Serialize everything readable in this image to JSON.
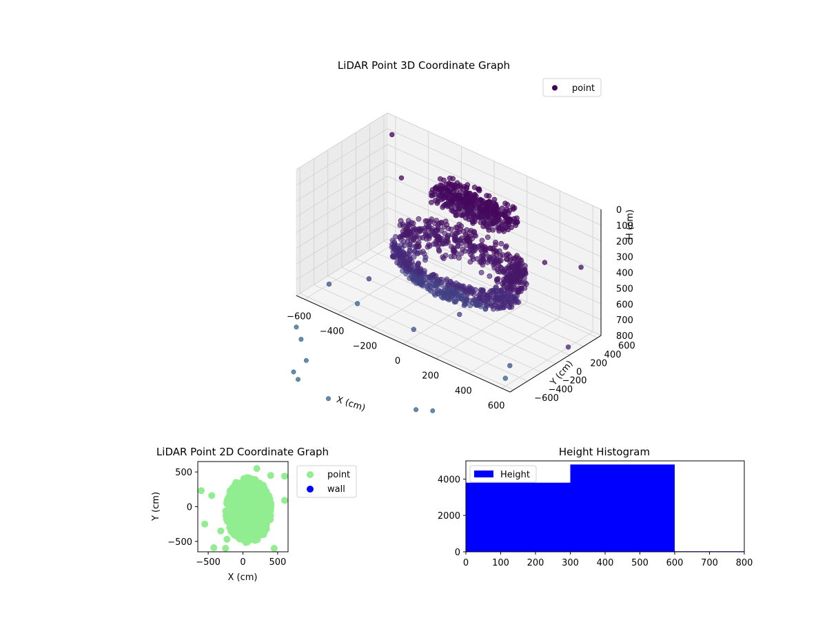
{
  "chart_data": [
    {
      "type": "scatter",
      "projection": "3d",
      "title": "LiDAR Point 3D Coordinate Graph",
      "xlabel": "X (cm)",
      "ylabel": "Y (cm)",
      "zlabel": "H (cm)",
      "xlim": [
        -650,
        650
      ],
      "ylim": [
        -650,
        650
      ],
      "zlim": [
        800,
        0
      ],
      "z_inverted": true,
      "xticks": [
        -600,
        -400,
        -200,
        0,
        200,
        400,
        600
      ],
      "yticks": [
        -600,
        -400,
        -200,
        0,
        200,
        400,
        600
      ],
      "zticks": [
        0,
        100,
        200,
        300,
        400,
        500,
        600,
        700,
        800
      ],
      "legend": {
        "entries": [
          "point"
        ],
        "placement": "upper-right"
      },
      "colormap": "viridis",
      "series": [
        {
          "name": "point",
          "clusters": [
            {
              "description": "top slab",
              "x": [
                -200,
                250
              ],
              "y": [
                150,
                450
              ],
              "h": [
                130,
                230
              ]
            },
            {
              "description": "main shell",
              "x": [
                -350,
                400
              ],
              "y": [
                -300,
                450
              ],
              "h": [
                350,
                750
              ]
            }
          ],
          "outliers": [
            {
              "x": -600,
              "y": 600,
              "h": 100
            },
            {
              "x": -500,
              "y": 500,
              "h": 300
            },
            {
              "x": 550,
              "y": 600,
              "h": 400
            },
            {
              "x": 600,
              "y": 300,
              "h": 800
            },
            {
              "x": 500,
              "y": -300,
              "h": 800
            },
            {
              "x": -400,
              "y": -200,
              "h": 700
            },
            {
              "x": -600,
              "y": -300,
              "h": 800
            },
            {
              "x": 0,
              "y": -500,
              "h": 750
            },
            {
              "x": -300,
              "y": -600,
              "h": 700
            },
            {
              "x": 300,
              "y": -550,
              "h": 500
            },
            {
              "x": 600,
              "y": -600,
              "h": 750
            },
            {
              "x": 400,
              "y": 0,
              "h": 500
            }
          ]
        }
      ]
    },
    {
      "type": "scatter",
      "title": "LiDAR Point 2D Coordinate Graph",
      "xlabel": "X (cm)",
      "ylabel": "Y (cm)",
      "xlim": [
        -650,
        650
      ],
      "ylim": [
        -650,
        650
      ],
      "xticks": [
        -500,
        0,
        500
      ],
      "yticks": [
        -500,
        0,
        500
      ],
      "legend": {
        "entries": [
          "point",
          "wall"
        ],
        "placement": "outside-right"
      },
      "series": [
        {
          "name": "point",
          "color": "#90ee90",
          "cluster": {
            "x": [
              -350,
              450
            ],
            "y": [
              -550,
              500
            ]
          },
          "outliers": [
            {
              "x": -600,
              "y": 230
            },
            {
              "x": -450,
              "y": 160
            },
            {
              "x": -550,
              "y": -250
            },
            {
              "x": -320,
              "y": -350
            },
            {
              "x": -230,
              "y": -470
            },
            {
              "x": -420,
              "y": -590
            },
            {
              "x": -250,
              "y": -600
            },
            {
              "x": 200,
              "y": 550
            },
            {
              "x": 400,
              "y": 450
            },
            {
              "x": 600,
              "y": 440
            },
            {
              "x": 600,
              "y": 90
            },
            {
              "x": 450,
              "y": -600
            },
            {
              "x": -100,
              "y": 350
            }
          ]
        },
        {
          "name": "wall",
          "color": "#0000ff",
          "points": []
        }
      ]
    },
    {
      "type": "bar",
      "subtype": "histogram",
      "title": "Height Histogram",
      "xlim": [
        0,
        800
      ],
      "ylim": [
        0,
        5000
      ],
      "xticks": [
        0,
        100,
        200,
        300,
        400,
        500,
        600,
        700,
        800
      ],
      "yticks": [
        0,
        2000,
        4000
      ],
      "legend": {
        "entries": [
          "Height"
        ],
        "placement": "upper-left"
      },
      "color": "#0000ff",
      "bins": [
        {
          "from": 0,
          "to": 300,
          "count": 3800
        },
        {
          "from": 300,
          "to": 600,
          "count": 4800
        },
        {
          "from": 600,
          "to": 800,
          "count": 30
        }
      ]
    }
  ]
}
